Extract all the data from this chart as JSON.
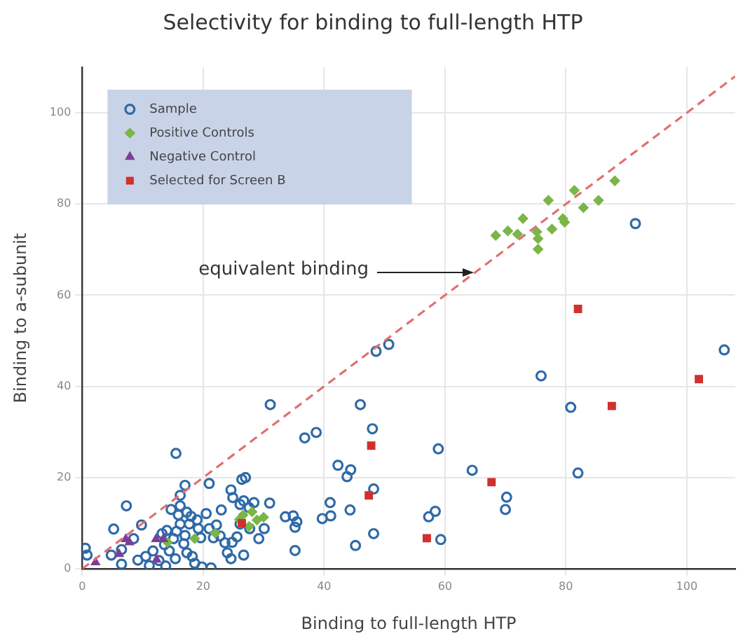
{
  "chart_data": {
    "type": "scatter",
    "title": "Selectivity for binding to full-length HTP",
    "xlabel": "Binding to full-length HTP",
    "ylabel": "Binding to a-subunit",
    "xlim": [
      0,
      108
    ],
    "ylim": [
      0,
      110
    ],
    "xticks": [
      0,
      20,
      40,
      60,
      80,
      100
    ],
    "yticks": [
      0,
      20,
      40,
      60,
      80,
      100
    ],
    "grid": true,
    "legend": "top left",
    "annotations": [
      {
        "text": "equivalent binding",
        "x": 65,
        "y": 65
      }
    ],
    "series": [
      {
        "name": "Sample",
        "color": "#2e6aa8",
        "marker": "circle",
        "x": [
          91.5,
          48.6,
          50.7,
          106.2,
          75.9,
          80.8,
          82,
          48,
          58.9,
          64.5,
          48.2,
          70.2,
          70,
          57.3,
          58.4,
          59.3,
          48.2,
          31.1,
          46,
          36.8,
          38.7,
          15.5,
          42.3,
          44.4,
          43.8,
          21,
          17,
          27,
          26.4,
          41,
          39.7,
          41.1,
          44.3,
          33.6,
          34.9,
          35.5,
          35.2,
          35.2,
          45.2,
          31,
          7.3,
          5.2,
          9.8,
          0.5,
          0.8,
          4.8,
          6.5,
          8.5,
          6.5,
          9.2,
          10.5,
          11.7,
          12.7,
          11.1,
          13.6,
          14,
          13.2,
          15.1,
          15.6,
          14.4,
          15.4,
          13.8,
          16.2,
          15.9,
          16.2,
          14.7,
          16.2,
          17.3,
          18,
          17.7,
          17,
          16.8,
          17.3,
          18.2,
          18.6,
          19,
          19.2,
          19.6,
          20.5,
          21,
          22.2,
          21.7,
          22.8,
          23.6,
          24,
          24.6,
          24.8,
          25.6,
          23,
          24.6,
          24.9,
          26.1,
          26.7,
          27.6,
          28.4,
          26.1,
          27.7,
          29.2,
          30.1,
          26.7,
          21.3,
          19.8
        ],
        "values": [
          75.7,
          47.7,
          49.2,
          48,
          42.3,
          35.4,
          21,
          30.7,
          26.3,
          21.6,
          17.5,
          15.7,
          13,
          11.4,
          12.6,
          6.4,
          7.7,
          36,
          36,
          28.7,
          29.9,
          25.3,
          22.7,
          21.7,
          20.2,
          18.7,
          18.3,
          20,
          19.6,
          14.5,
          11,
          11.6,
          12.9,
          11.4,
          11.6,
          10.3,
          9.1,
          4,
          5.1,
          14.4,
          13.8,
          8.7,
          9.6,
          4.5,
          3,
          3,
          4.2,
          6.6,
          1,
          1.9,
          2.7,
          3.9,
          1.8,
          0.7,
          5.3,
          8.4,
          7.7,
          6.6,
          8.2,
          3.9,
          2.2,
          0.6,
          9.8,
          11.8,
          13.8,
          13,
          16.1,
          12.4,
          11.5,
          9.8,
          7.3,
          5.5,
          3.5,
          2.7,
          1.2,
          10.7,
          8.8,
          6.8,
          12.1,
          8.8,
          9.6,
          6.8,
          7.2,
          5.7,
          3.5,
          2.2,
          5.8,
          7,
          12.9,
          17.3,
          15.6,
          14.1,
          14.9,
          13.4,
          14.5,
          9.8,
          8.8,
          6.6,
          8.8,
          3,
          0.2,
          0.4
        ]
      },
      {
        "name": "Positive Controls",
        "color": "#7ab648",
        "marker": "diamond",
        "x": [
          68.4,
          70.4,
          72,
          72.9,
          75.2,
          75.4,
          75.4,
          77.1,
          77.7,
          79.5,
          79.8,
          81.4,
          82.9,
          85.4,
          88.1,
          26.6,
          27.6,
          28.9,
          30,
          28.1,
          26,
          22,
          18.6,
          14.1
        ],
        "values": [
          73.1,
          74.1,
          73.4,
          76.8,
          73.9,
          72.4,
          70.1,
          80.8,
          74.5,
          76.8,
          76,
          83,
          79.2,
          80.8,
          85.1,
          11.8,
          9.3,
          10.7,
          11.3,
          12.5,
          10.8,
          7.8,
          6.6,
          5.8
        ]
      },
      {
        "name": "Negative Control",
        "color": "#7b3f98",
        "marker": "triangle",
        "x": [
          2.2,
          7.2,
          6.1,
          12.2,
          13.4,
          12.3,
          7.8
        ],
        "values": [
          1.4,
          6.5,
          3.2,
          6.5,
          6.5,
          2,
          5.8
        ]
      },
      {
        "name": "Selected for Screen B",
        "color": "#d0312d",
        "marker": "square",
        "x": [
          82,
          102,
          87.6,
          47.8,
          67.7,
          47.4,
          57,
          26.4
        ],
        "values": [
          57,
          41.6,
          35.7,
          27,
          19,
          16.1,
          6.7,
          10
        ]
      },
      {
        "type": "line",
        "color": "#e07070",
        "line_style": "dashed",
        "marker": "none",
        "x": [
          0,
          108
        ],
        "values": [
          0,
          108
        ]
      }
    ]
  }
}
